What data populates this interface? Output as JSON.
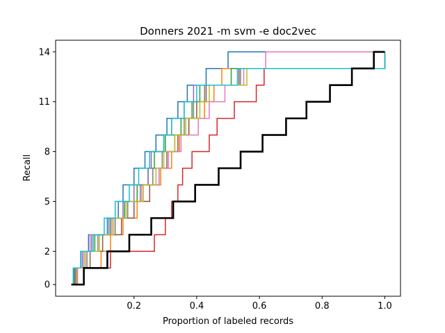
{
  "chart_data": {
    "type": "line",
    "title": "Donners 2021 -m svm -e doc2vec",
    "xlabel": "Proportion of labeled records",
    "ylabel": "Recall",
    "xlim": [
      -0.05,
      1.05
    ],
    "ylim": [
      -0.7,
      14.7
    ],
    "x_ticks": [
      0.2,
      0.4,
      0.6,
      0.8,
      1.0
    ],
    "x_tick_labels": [
      "0.2",
      "0.4",
      "0.6",
      "0.8",
      "1.0"
    ],
    "y_ticks": [
      0,
      2,
      5,
      8,
      11,
      14
    ],
    "y_tick_labels": [
      "0",
      "2",
      "5",
      "8",
      "11",
      "14"
    ],
    "grid": false,
    "legend": "none",
    "step_where": "post",
    "series": [
      {
        "color": "#1f77b4",
        "x": [
          0.0,
          0.012,
          0.03,
          0.055,
          0.115,
          0.15,
          0.165,
          0.2,
          0.235,
          0.27,
          0.305,
          0.34,
          0.37,
          0.43,
          0.5,
          1.0
        ],
        "y": [
          0,
          1,
          2,
          3,
          4,
          5,
          6,
          7,
          8,
          9,
          10,
          11,
          12,
          13,
          14,
          14
        ]
      },
      {
        "color": "#ff7f0e",
        "x": [
          0.0,
          0.01,
          0.095,
          0.125,
          0.165,
          0.21,
          0.25,
          0.285,
          0.32,
          0.345,
          0.375,
          0.425,
          0.455,
          0.48,
          1.0
        ],
        "y": [
          0,
          1,
          2,
          3,
          4,
          5,
          6,
          7,
          8,
          9,
          10,
          11,
          12,
          13,
          14
        ]
      },
      {
        "color": "#2ca02c",
        "x": [
          0.0,
          0.01,
          0.04,
          0.075,
          0.125,
          0.17,
          0.21,
          0.245,
          0.265,
          0.3,
          0.35,
          0.385,
          0.41,
          0.51,
          1.0
        ],
        "y": [
          0,
          1,
          2,
          3,
          4,
          5,
          6,
          7,
          8,
          9,
          10,
          11,
          12,
          13,
          14
        ]
      },
      {
        "color": "#d62728",
        "x": [
          0.0,
          0.015,
          0.125,
          0.265,
          0.3,
          0.32,
          0.34,
          0.355,
          0.385,
          0.44,
          0.465,
          0.52,
          0.59,
          0.615,
          1.0
        ],
        "y": [
          0,
          1,
          2,
          3,
          4,
          5,
          6,
          7,
          8,
          9,
          10,
          11,
          12,
          13,
          14
        ]
      },
      {
        "color": "#9467bd",
        "x": [
          0.0,
          0.008,
          0.035,
          0.065,
          0.12,
          0.165,
          0.2,
          0.245,
          0.255,
          0.295,
          0.32,
          0.36,
          0.39,
          0.53,
          1.0
        ],
        "y": [
          0,
          1,
          2,
          3,
          4,
          5,
          6,
          7,
          8,
          9,
          10,
          11,
          12,
          13,
          14
        ]
      },
      {
        "color": "#8c564b",
        "x": [
          0.0,
          0.018,
          0.06,
          0.1,
          0.16,
          0.2,
          0.25,
          0.28,
          0.305,
          0.34,
          0.375,
          0.4,
          0.43,
          0.535,
          1.0
        ],
        "y": [
          0,
          1,
          2,
          3,
          4,
          5,
          6,
          7,
          8,
          9,
          10,
          11,
          12,
          13,
          14
        ]
      },
      {
        "color": "#e377c2",
        "x": [
          0.0,
          0.02,
          0.04,
          0.06,
          0.13,
          0.18,
          0.225,
          0.28,
          0.31,
          0.35,
          0.405,
          0.44,
          0.49,
          0.55,
          0.62,
          1.0
        ],
        "y": [
          0,
          1,
          2,
          3,
          4,
          5,
          6,
          7,
          8,
          9,
          10,
          11,
          12,
          13,
          14,
          14
        ]
      },
      {
        "color": "#7f7f7f",
        "x": [
          0.0,
          0.013,
          0.05,
          0.085,
          0.14,
          0.18,
          0.22,
          0.26,
          0.29,
          0.33,
          0.36,
          0.39,
          0.425,
          0.54,
          1.0
        ],
        "y": [
          0,
          1,
          2,
          3,
          4,
          5,
          6,
          7,
          8,
          9,
          10,
          11,
          12,
          13,
          14
        ]
      },
      {
        "color": "#bcbd22",
        "x": [
          0.0,
          0.016,
          0.045,
          0.09,
          0.135,
          0.175,
          0.23,
          0.27,
          0.295,
          0.33,
          0.365,
          0.41,
          0.44,
          0.56,
          1.0
        ],
        "y": [
          0,
          1,
          2,
          3,
          4,
          5,
          6,
          7,
          8,
          9,
          10,
          11,
          12,
          13,
          14
        ]
      },
      {
        "color": "#17becf",
        "x": [
          0.0,
          0.006,
          0.03,
          0.07,
          0.105,
          0.14,
          0.185,
          0.215,
          0.25,
          0.295,
          0.32,
          0.36,
          0.4,
          0.53,
          1.0
        ],
        "y": [
          0,
          1,
          2,
          3,
          4,
          5,
          6,
          7,
          8,
          9,
          10,
          11,
          12,
          13,
          14
        ]
      },
      {
        "color": "#000000",
        "width": 2.6,
        "x": [
          0.0,
          0.04,
          0.115,
          0.185,
          0.255,
          0.325,
          0.395,
          0.47,
          0.54,
          0.61,
          0.685,
          0.75,
          0.825,
          0.895,
          0.965,
          1.0
        ],
        "y": [
          0,
          1,
          2,
          3,
          4,
          5,
          6,
          7,
          8,
          9,
          10,
          11,
          12,
          13,
          14,
          14
        ]
      }
    ]
  }
}
